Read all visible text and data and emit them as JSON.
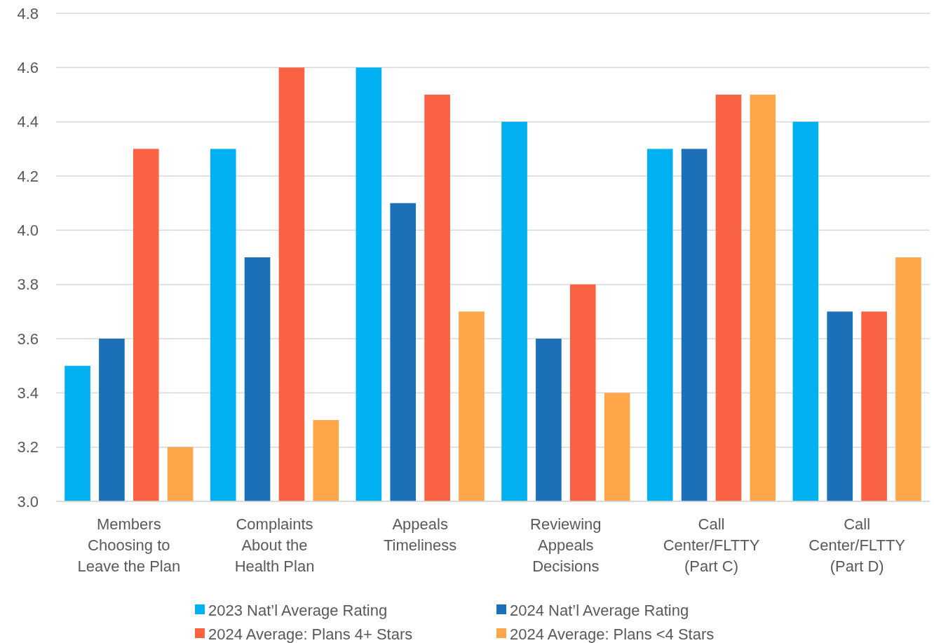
{
  "chart_data": {
    "type": "bar",
    "categories": [
      "Members Choosing to Leave the Plan",
      "Complaints About the Health Plan",
      "Appeals Timeliness",
      "Reviewing Appeals Decisions",
      "Call Center/FLTTY (Part C)",
      "Call Center/FLTTY (Part D)"
    ],
    "series": [
      {
        "name": "2023 Nat’l Average Rating",
        "color": "#00b0f0",
        "values": [
          3.5,
          4.3,
          4.6,
          4.4,
          4.3,
          4.4
        ]
      },
      {
        "name": "2024 Nat’l Average Rating",
        "color": "#1b70b8",
        "values": [
          3.6,
          3.9,
          4.1,
          3.6,
          4.3,
          3.7
        ]
      },
      {
        "name": "2024 Average: Plans 4+ Stars",
        "color": "#fa6244",
        "values": [
          4.3,
          4.6,
          4.5,
          3.8,
          4.5,
          3.7
        ]
      },
      {
        "name": "2024 Average: Plans <4 Stars",
        "color": "#ffa64a",
        "values": [
          3.2,
          3.3,
          3.7,
          3.4,
          4.5,
          3.9
        ]
      }
    ],
    "ylim": [
      3.0,
      4.8
    ],
    "yticks": [
      {
        "value": 3.0,
        "label": "3.0"
      },
      {
        "value": 3.2,
        "label": "3.2"
      },
      {
        "value": 3.4,
        "label": "3.4"
      },
      {
        "value": 3.6,
        "label": "3.6"
      },
      {
        "value": 3.8,
        "label": "3.8"
      },
      {
        "value": 4.0,
        "label": "4.0"
      },
      {
        "value": 4.2,
        "label": "4.2"
      },
      {
        "value": 4.4,
        "label": "4.4"
      },
      {
        "value": 4.6,
        "label": "4.6"
      },
      {
        "value": 4.8,
        "label": "4.8"
      }
    ],
    "grid": "y",
    "legend": "bottom"
  }
}
